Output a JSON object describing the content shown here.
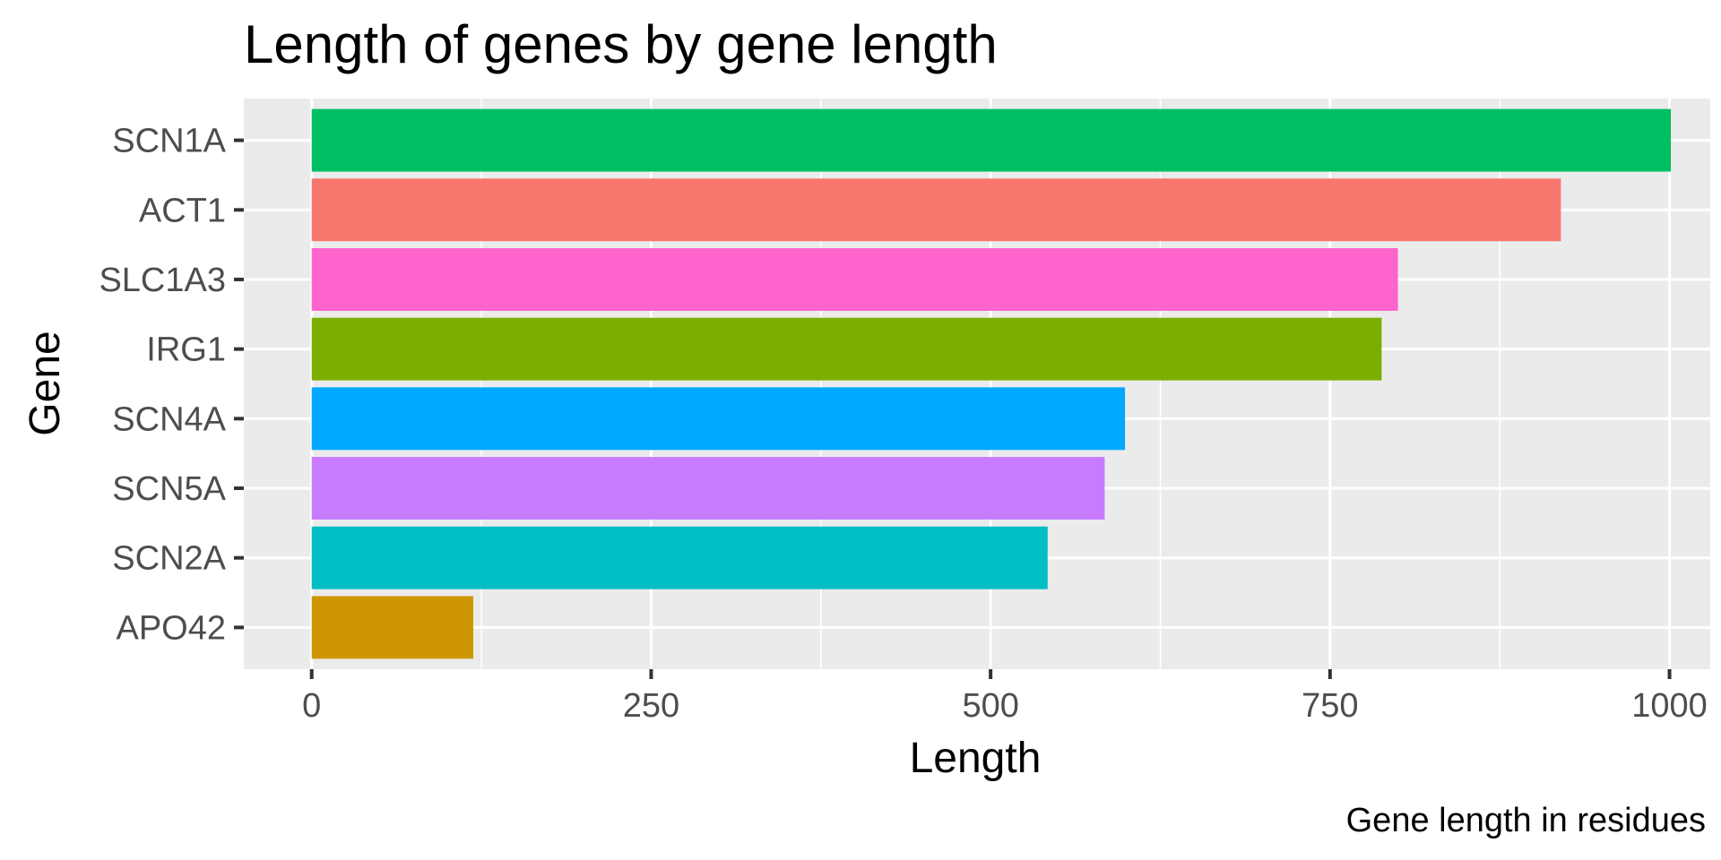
{
  "chart_data": {
    "type": "bar",
    "orientation": "horizontal",
    "title": "Length of genes by gene length",
    "xlabel": "Length",
    "ylabel": "Gene",
    "caption": "Gene length in residues",
    "categories": [
      "SCN1A",
      "ACT1",
      "SLC1A3",
      "IRG1",
      "SCN4A",
      "SCN5A",
      "SCN2A",
      "APO42"
    ],
    "values": [
      1001,
      920,
      800,
      788,
      599,
      584,
      542,
      119
    ],
    "colors": [
      "#00BF63",
      "#F8766D",
      "#FF63CC",
      "#7CAE00",
      "#00A9FF",
      "#C77CFF",
      "#00BFC4",
      "#CD9600"
    ],
    "xlim": [
      -50,
      1030
    ],
    "xticks": [
      0,
      250,
      500,
      750,
      1000
    ],
    "xtick_labels": [
      "0",
      "250",
      "500",
      "750",
      "1000"
    ],
    "grid": true,
    "legend": "none",
    "panel_background": "#EBEBEB"
  }
}
